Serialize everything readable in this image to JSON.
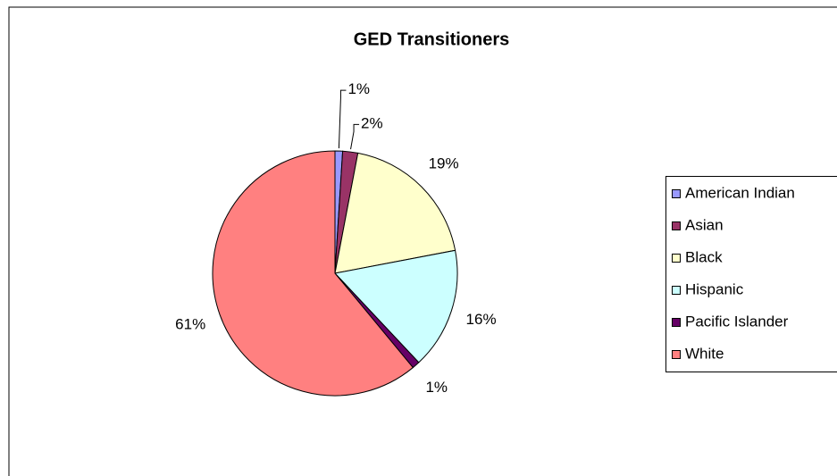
{
  "chart_data": {
    "type": "pie",
    "title": "GED Transitioners",
    "categories": [
      "American Indian",
      "Asian",
      "Black",
      "Hispanic",
      "Pacific Islander",
      "White"
    ],
    "values": [
      1,
      2,
      19,
      16,
      1,
      61
    ],
    "colors": [
      "#9999ff",
      "#993366",
      "#ffffcc",
      "#ccffff",
      "#660066",
      "#ff8080"
    ],
    "legend": "right"
  }
}
